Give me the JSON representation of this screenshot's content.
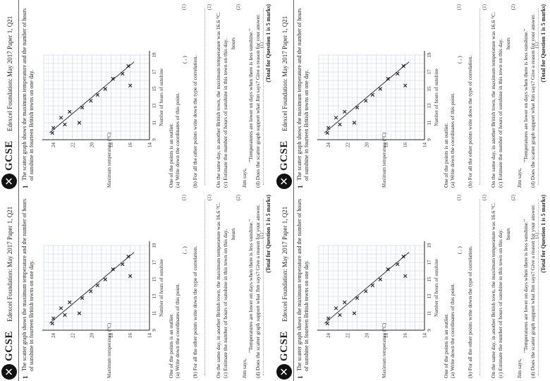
{
  "sheet": {
    "logo_glyph": "✕",
    "brand": "GCSE",
    "header": "Edexcel Foundation: May 2017 Paper 1, Q21",
    "question_number": "1",
    "intro": "The scatter graph shows the maximum temperature and the number of hours of sunshine in fourteen British towns on one day.",
    "y_axis_title": "Maximum temperature (°C)",
    "x_axis_title": "Number of hours of sunshine",
    "part_a_lead": "One of the points is an outlier.",
    "part_a": "(a) Write down the coordinates of this point.",
    "part_a_answer": "(   ,   )",
    "part_a_marks": "(1)",
    "part_b": "(b) For all the other points write down the type of correlation.",
    "part_b_marks": "(1)",
    "part_c_lead": "On the same day, in another British town, the maximum temperature was 16.6 °C.",
    "part_c": "(c) Estimate the number of hours of sunshine in this town on this day.",
    "part_c_unit": "hours",
    "part_c_marks": "(2)",
    "part_d_lead": "Jim says,",
    "part_d_quote": "\"Temperatures are lower on days when there is less sunshine.\"",
    "part_d": "(d) Does the scatter graph support what Jim says? Give a reason for your answer.",
    "part_d_marks": "(1)",
    "total": "(Total for Question 1 is 5 marks)"
  },
  "chart_data": {
    "type": "scatter",
    "x_ticks": [
      "9",
      "11",
      "13",
      "15",
      "17",
      "19"
    ],
    "y_ticks": [
      "14",
      "16",
      "18",
      "20",
      "22",
      "24"
    ],
    "xlim": [
      9,
      19
    ],
    "ylim": [
      14,
      25
    ],
    "xlabel": "Number of hours of sunshine",
    "ylabel": "Maximum temperature (°C)",
    "grid": true,
    "points": [
      {
        "x": 9.8,
        "y": 24.1
      },
      {
        "x": 10.4,
        "y": 24.0
      },
      {
        "x": 10.8,
        "y": 22.8
      },
      {
        "x": 11.6,
        "y": 23.2
      },
      {
        "x": 12.3,
        "y": 22.3
      },
      {
        "x": 11.0,
        "y": 21.3
      },
      {
        "x": 12.8,
        "y": 21.0
      },
      {
        "x": 13.6,
        "y": 20.1
      },
      {
        "x": 14.3,
        "y": 19.4
      },
      {
        "x": 15.0,
        "y": 18.6
      },
      {
        "x": 16.2,
        "y": 17.8
      },
      {
        "x": 16.8,
        "y": 16.8
      },
      {
        "x": 17.7,
        "y": 16.2
      },
      {
        "x": 15.4,
        "y": 16.0
      }
    ],
    "trend_line": {
      "x1": 9.8,
      "y1": 24.4,
      "x2": 18.2,
      "y2": 15.6
    }
  }
}
